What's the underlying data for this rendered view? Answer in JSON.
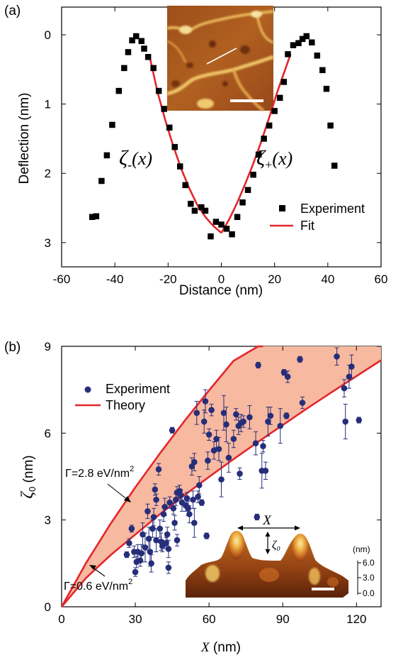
{
  "chart_data": [
    {
      "panel": "(a)",
      "type": "scatter",
      "xlabel": "Distance (nm)",
      "ylabel": "Deflection (nm)",
      "xlim": [
        -60,
        60
      ],
      "ylim": [
        3.35,
        -0.4
      ],
      "y_inverted": true,
      "xticks": [
        -60,
        -40,
        -20,
        0,
        20,
        40,
        60
      ],
      "yticks": [
        0,
        1,
        2,
        3
      ],
      "grid": false,
      "legend_position": "bottom-right",
      "series": [
        {
          "name": "Experiment",
          "marker": "square",
          "color": "#000000",
          "points": [
            [
              -48.5,
              2.63
            ],
            [
              -47,
              2.62
            ],
            [
              -45,
              2.11
            ],
            [
              -43,
              1.74
            ],
            [
              -41,
              1.3
            ],
            [
              -38.5,
              0.81
            ],
            [
              -36.5,
              0.48
            ],
            [
              -35,
              0.25
            ],
            [
              -33.5,
              0.08
            ],
            [
              -32,
              0.02
            ],
            [
              -30,
              0.09
            ],
            [
              -29,
              0.2
            ],
            [
              -27.5,
              0.32
            ],
            [
              -25.5,
              0.48
            ],
            [
              -23.5,
              0.81
            ],
            [
              -21.5,
              1.07
            ],
            [
              -19.5,
              1.34
            ],
            [
              -17.5,
              1.62
            ],
            [
              -15.5,
              1.9
            ],
            [
              -13.5,
              2.17
            ],
            [
              -11.5,
              2.44
            ],
            [
              -10,
              2.54
            ],
            [
              -7.5,
              2.49
            ],
            [
              -6,
              2.54
            ],
            [
              -4,
              2.91
            ],
            [
              -2,
              2.7
            ],
            [
              0,
              2.74
            ],
            [
              2,
              2.8
            ],
            [
              4,
              2.88
            ],
            [
              6,
              2.63
            ],
            [
              8,
              2.42
            ],
            [
              10,
              2.24
            ],
            [
              12,
              2.02
            ],
            [
              14,
              1.73
            ],
            [
              16,
              1.5
            ],
            [
              18,
              1.31
            ],
            [
              20,
              1.1
            ],
            [
              22,
              0.91
            ],
            [
              23.5,
              0.68
            ],
            [
              25,
              0.28
            ],
            [
              27,
              0.15
            ],
            [
              29,
              0.12
            ],
            [
              30.5,
              0.06
            ],
            [
              32,
              0.02
            ],
            [
              34,
              0.11
            ],
            [
              36,
              0.3
            ],
            [
              38,
              0.51
            ],
            [
              39.5,
              0.78
            ],
            [
              41,
              1.31
            ],
            [
              42.5,
              1.89
            ]
          ]
        },
        {
          "name": "Fit",
          "color": "#e3262b",
          "curves": [
            {
              "label": "ζ₋(x)",
              "x": [
                -27,
                -24,
                -21,
                -18,
                -15,
                -12,
                -9,
                -6,
                -3,
                0
              ],
              "y": [
                0.3,
                0.82,
                1.24,
                1.61,
                1.94,
                2.22,
                2.46,
                2.63,
                2.76,
                2.86
              ]
            },
            {
              "label": "ζ₊(x)",
              "x": [
                0,
                3,
                6,
                9,
                12,
                15,
                18,
                21,
                24,
                26
              ],
              "y": [
                2.86,
                2.66,
                2.42,
                2.15,
                1.86,
                1.54,
                1.19,
                0.83,
                0.5,
                0.28
              ]
            }
          ]
        }
      ],
      "annotations": {
        "zeta_minus": "ζ₋(x)",
        "zeta_plus": "ζ₊(x)"
      },
      "inset": {
        "kind": "AFM height image",
        "colors": {
          "background": "#a8561e",
          "bright": "#f3d07a",
          "dark": "#6e3410",
          "line": "#ffffff",
          "scalebar": "#ffffff"
        }
      }
    },
    {
      "panel": "(b)",
      "type": "scatter",
      "xlabel": "X (nm)",
      "ylabel": "ζ0 (nm)",
      "xlim": [
        0,
        130
      ],
      "ylim": [
        0,
        9
      ],
      "xticks": [
        0,
        30,
        60,
        90,
        120
      ],
      "yticks": [
        0,
        3,
        6,
        9
      ],
      "grid": false,
      "legend_position": "top-left",
      "series": [
        {
          "name": "Experiment",
          "marker": "circle",
          "color": "#262e7a",
          "points": [
            [
              26.5,
              1.8,
              0.1
            ],
            [
              27.5,
              2.2,
              0.15
            ],
            [
              28.5,
              2.7,
              0.12
            ],
            [
              29.5,
              1.9,
              0.2
            ],
            [
              30,
              1.2,
              0.15
            ],
            [
              30.5,
              1.55,
              0.2
            ],
            [
              31,
              1.9,
              0.25
            ],
            [
              32,
              1.6,
              0.2
            ],
            [
              32.5,
              1.85,
              0.3
            ],
            [
              33,
              2.5,
              0.4
            ],
            [
              34,
              2.05,
              0.5
            ],
            [
              35,
              3.3,
              0.25
            ],
            [
              35.5,
              2.35,
              0.4
            ],
            [
              36,
              1.9,
              0.5
            ],
            [
              36.5,
              1.5,
              0.3
            ],
            [
              37,
              2.7,
              0.3
            ],
            [
              37.5,
              3.1,
              0.3
            ],
            [
              38,
              4.05,
              0.2
            ],
            [
              38.5,
              3.7,
              0.2
            ],
            [
              38.5,
              2.3,
              0.4
            ],
            [
              39.5,
              4.75,
              0.2
            ],
            [
              40,
              2.7,
              0.3
            ],
            [
              40.5,
              2.25,
              0.3
            ],
            [
              41,
              2.1,
              0.2
            ],
            [
              41.5,
              3.2,
              0.25
            ],
            [
              42,
              3.45,
              0.3
            ],
            [
              42.5,
              2.2,
              0.2
            ],
            [
              43,
              2.5,
              0.25
            ],
            [
              43.5,
              2.0,
              0.3
            ],
            [
              43.5,
              1.35,
              0.2
            ],
            [
              44,
              3.6,
              0.2
            ],
            [
              45,
              6.1,
              0.1
            ],
            [
              45.5,
              3.4,
              0.2
            ],
            [
              46,
              2.9,
              0.25
            ],
            [
              46.5,
              3.7,
              0.2
            ],
            [
              47,
              2.3,
              0.2
            ],
            [
              47,
              3.95,
              0.2
            ],
            [
              48,
              4.0,
              0.2
            ],
            [
              48.5,
              3.85,
              0.2
            ],
            [
              49,
              3.6,
              0.3
            ],
            [
              50.5,
              3.5,
              0.2
            ],
            [
              51,
              3.75,
              0.2
            ],
            [
              51.5,
              3.4,
              0.25
            ],
            [
              52,
              3.2,
              0.3
            ],
            [
              53,
              4.85,
              0.3
            ],
            [
              53.5,
              3.7,
              0.3
            ],
            [
              54,
              2.9,
              0.5
            ],
            [
              54,
              5.0,
              0.3
            ],
            [
              55,
              6.7,
              0.4
            ],
            [
              55.5,
              3.8,
              0.2
            ],
            [
              56,
              4.2,
              0.3
            ],
            [
              57,
              3.6,
              0.1
            ],
            [
              58,
              6.4,
              0.4
            ],
            [
              58.5,
              7.1,
              0.4
            ],
            [
              59,
              2.45,
              0.1
            ],
            [
              59.5,
              5.05,
              0.3
            ],
            [
              60,
              5.95,
              0.2
            ],
            [
              61,
              6.8,
              0.2
            ],
            [
              62,
              5.4,
              0.3
            ],
            [
              63,
              5.8,
              0.3
            ],
            [
              64,
              5.45,
              0.4
            ],
            [
              65,
              4.4,
              0.6
            ],
            [
              66,
              6.7,
              0.6
            ],
            [
              67,
              6.3,
              0.6
            ],
            [
              68,
              5.15,
              0.5
            ],
            [
              70,
              5.8,
              0.3
            ],
            [
              71,
              6.65,
              0.2
            ],
            [
              72,
              6.25,
              0.3
            ],
            [
              72.5,
              4.6,
              0.2
            ],
            [
              73,
              6.35,
              0.3
            ],
            [
              74,
              6.4,
              0.2
            ],
            [
              76.5,
              6.55,
              0.4
            ],
            [
              79,
              5.65,
              0.4
            ],
            [
              79.5,
              3.1,
              0.1
            ],
            [
              80,
              8.35,
              0.1
            ],
            [
              81.5,
              4.7,
              0.6
            ],
            [
              82,
              5.55,
              0.2
            ],
            [
              83,
              4.7,
              0.3
            ],
            [
              84,
              6.4,
              0.5
            ],
            [
              85,
              6.6,
              0.3
            ],
            [
              89,
              6.25,
              0.6
            ],
            [
              90.5,
              8.1,
              0.1
            ],
            [
              91.5,
              6.6,
              0.1
            ],
            [
              92,
              7.95,
              0.2
            ],
            [
              97,
              8.55,
              0.1
            ],
            [
              98,
              7.05,
              0.2
            ],
            [
              112,
              8.65,
              0.3
            ],
            [
              115,
              7.55,
              0.3
            ],
            [
              115.5,
              6.4,
              0.6
            ],
            [
              117,
              7.95,
              0.4
            ],
            [
              118,
              8.3,
              0.4
            ],
            [
              121,
              6.45,
              0.1
            ]
          ]
        },
        {
          "name": "Theory",
          "color": "#e3262b",
          "fill": "#f7b9a0",
          "curves": [
            {
              "label": "Γ=2.8 eV/nm²",
              "x": [
                0,
                10,
                20,
                30,
                40,
                50,
                60,
                70,
                80,
                82
              ],
              "y": [
                0,
                1.52,
                2.88,
                4.13,
                5.3,
                6.42,
                7.48,
                8.5,
                9.0,
                9.0
              ]
            },
            {
              "label": "Γ=0.6 eV/nm²",
              "x": [
                0,
                10,
                20,
                30,
                40,
                50,
                60,
                70,
                80,
                90,
                100,
                110,
                120,
                130
              ],
              "y": [
                0,
                1.0,
                1.79,
                2.5,
                3.2,
                3.86,
                4.49,
                5.1,
                5.7,
                6.28,
                6.86,
                7.42,
                7.97,
                8.52
              ]
            }
          ]
        }
      ],
      "annotations": {
        "gamma_high": "Γ=2.8 eV/nm",
        "gamma_low": "Γ=0.6 eV/nm",
        "superscript": "2"
      },
      "inset": {
        "kind": "3D AFM topography",
        "x_symbol": "X",
        "zeta_symbol": "ζ₀",
        "unit": "(nm)",
        "scale_ticks": [
          "6.0",
          "3.0",
          "0.0"
        ]
      }
    }
  ],
  "legend": {
    "a_experiment": "Experiment",
    "a_fit": "Fit",
    "b_experiment": "Experiment",
    "b_theory": "Theory"
  }
}
